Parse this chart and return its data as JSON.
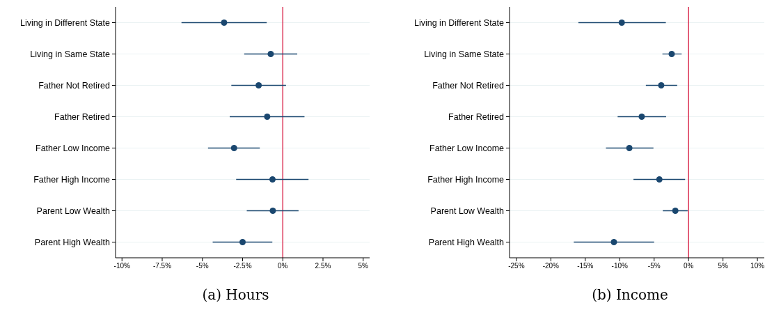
{
  "chart_data": [
    {
      "type": "scatter",
      "title": "(a) Hours",
      "orientation": "horizontal",
      "marker": "circle",
      "grid": "y",
      "color": "#1a476f",
      "categories": [
        "Living in Different State",
        "Living in Same State",
        "Father Not Retired",
        "Father Retired",
        "Father Low Income",
        "Father High Income",
        "Parent Low Wealth",
        "Parent High Wealth"
      ],
      "values": [
        -3.65,
        -0.75,
        -1.5,
        -0.97,
        -3.03,
        -0.64,
        -0.62,
        -2.5
      ],
      "errors": [
        [
          -6.3,
          -1.0
        ],
        [
          -2.4,
          0.9
        ],
        [
          -3.2,
          0.2
        ],
        [
          -3.3,
          1.35
        ],
        [
          -4.65,
          -1.43
        ],
        [
          -2.9,
          1.6
        ],
        [
          -2.24,
          0.98
        ],
        [
          -4.36,
          -0.65
        ]
      ],
      "xlim": [
        -10.4,
        5.4
      ],
      "xticks": [
        {
          "value": -10,
          "label": "-10%"
        },
        {
          "value": -7.5,
          "label": "-7.5%"
        },
        {
          "value": -5,
          "label": "-5%"
        },
        {
          "value": -2.5,
          "label": "-2.5%"
        },
        {
          "value": 0,
          "label": "0%"
        },
        {
          "value": 2.5,
          "label": "2.5%"
        },
        {
          "value": 5,
          "label": "5%"
        }
      ],
      "ref_lines": [
        {
          "axis": "x",
          "value": 0,
          "color": "#d6163d"
        }
      ]
    },
    {
      "type": "scatter",
      "title": "(b) Income",
      "orientation": "horizontal",
      "marker": "circle",
      "grid": "y",
      "color": "#1a476f",
      "categories": [
        "Living in Different State",
        "Living in Same State",
        "Father Not Retired",
        "Father Retired",
        "Father Low Income",
        "Father High Income",
        "Parent Low Wealth",
        "Parent High Wealth"
      ],
      "values": [
        -9.7,
        -2.45,
        -3.97,
        -6.8,
        -8.6,
        -4.24,
        -1.92,
        -10.84
      ],
      "errors": [
        [
          -16.0,
          -3.3
        ],
        [
          -3.8,
          -1.0
        ],
        [
          -6.2,
          -1.65
        ],
        [
          -10.3,
          -3.26
        ],
        [
          -12.0,
          -5.1
        ],
        [
          -8.0,
          -0.5
        ],
        [
          -3.74,
          -0.13
        ],
        [
          -16.67,
          -5.0
        ]
      ],
      "xlim": [
        -26,
        11
      ],
      "xticks": [
        {
          "value": -25,
          "label": "-25%"
        },
        {
          "value": -20,
          "label": "-20%"
        },
        {
          "value": -15,
          "label": "-15%"
        },
        {
          "value": -10,
          "label": "-10%"
        },
        {
          "value": -5,
          "label": "-5%"
        },
        {
          "value": 0,
          "label": "0%"
        },
        {
          "value": 5,
          "label": "5%"
        },
        {
          "value": 10,
          "label": "10%"
        }
      ],
      "ref_lines": [
        {
          "axis": "x",
          "value": 0,
          "color": "#d6163d"
        }
      ]
    }
  ]
}
